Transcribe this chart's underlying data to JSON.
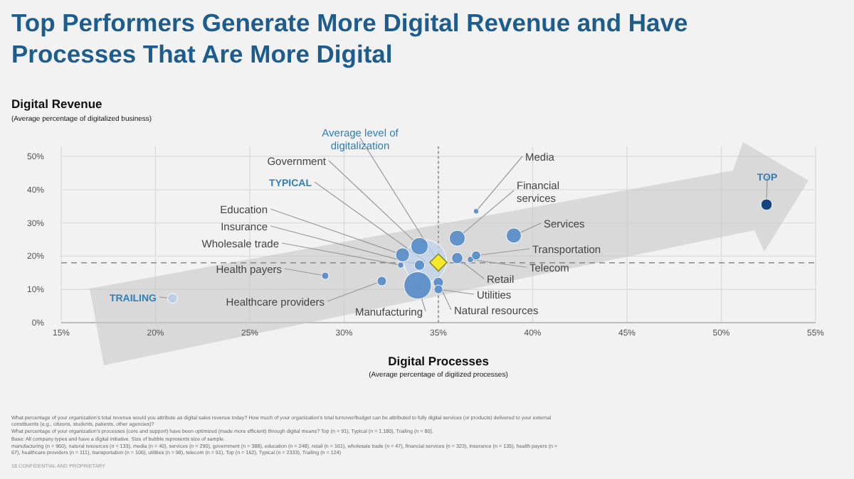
{
  "chart_data": {
    "type": "bubble",
    "title": "Top Performers Generate More Digital Revenue and Have Processes That Are More Digital",
    "xlabel": "Digital Processes\n(Average percentage of digitized processes)",
    "ylabel": "Digital Revenue\n(Average percentage of digitalized business)",
    "xlim": [
      15,
      55
    ],
    "xticks": [
      {
        "value": 15,
        "label": "15%"
      },
      {
        "value": 20,
        "label": "20%"
      },
      {
        "value": 25,
        "label": "25%"
      },
      {
        "value": 30,
        "label": "30%"
      },
      {
        "value": 35,
        "label": "35%"
      },
      {
        "value": 40,
        "label": "40%"
      },
      {
        "value": 45,
        "label": "45%"
      },
      {
        "value": 50,
        "label": "50%"
      },
      {
        "value": 55,
        "label": "55%"
      }
    ],
    "ylim": [
      0,
      53
    ],
    "yticks": [
      {
        "value": 0,
        "label": "0%"
      },
      {
        "value": 10,
        "label": "10%"
      },
      {
        "value": 20,
        "label": "20%"
      },
      {
        "value": 30,
        "label": "30%"
      },
      {
        "value": 40,
        "label": "40%"
      },
      {
        "value": 50,
        "label": "50%"
      }
    ],
    "grid": true,
    "series": [
      {
        "name": "TYPICAL",
        "color": "#bdd4ee",
        "x": [
          34.3
        ],
        "values": [
          18.5
        ],
        "sizes": [
          1
        ]
      },
      {
        "name": "TRAILING",
        "color": "#b8cfe8",
        "x": [
          20.9
        ],
        "values": [
          7.3
        ],
        "sizes": [
          0.053
        ]
      },
      {
        "name": "Health payers",
        "color": "#5b8fc9",
        "x": [
          29
        ],
        "values": [
          14.1
        ],
        "sizes": [
          0.029
        ]
      },
      {
        "name": "Healthcare providers",
        "color": "#5b8fc9",
        "x": [
          32
        ],
        "values": [
          12.5
        ],
        "sizes": [
          0.048
        ]
      },
      {
        "name": "Wholesale trade",
        "color": "#5b8fc9",
        "x": [
          33
        ],
        "values": [
          17.3
        ],
        "sizes": [
          0.02
        ]
      },
      {
        "name": "Education",
        "color": "#5b8fc9",
        "x": [
          33.1
        ],
        "values": [
          20.4
        ],
        "sizes": [
          0.106
        ]
      },
      {
        "name": "Insurance",
        "color": "#5b8fc9",
        "x": [
          34
        ],
        "values": [
          17.3
        ],
        "sizes": [
          0.058
        ]
      },
      {
        "name": "Government",
        "color": "#5b8fc9",
        "x": [
          34
        ],
        "values": [
          23
        ],
        "sizes": [
          0.166
        ]
      },
      {
        "name": "Manufacturing",
        "color": "#5b8fc9",
        "x": [
          33.9
        ],
        "values": [
          11.2
        ],
        "sizes": [
          0.41
        ]
      },
      {
        "name": "Natural resources",
        "color": "#5b8fc9",
        "x": [
          35
        ],
        "values": [
          12.1
        ],
        "sizes": [
          0.057
        ]
      },
      {
        "name": "Utilities",
        "color": "#5b8fc9",
        "x": [
          35
        ],
        "values": [
          10
        ],
        "sizes": [
          0.042
        ]
      },
      {
        "name": "Retail",
        "color": "#5b8fc9",
        "x": [
          36
        ],
        "values": [
          19.4
        ],
        "sizes": [
          0.069
        ]
      },
      {
        "name": "Telecom",
        "color": "#5b8fc9",
        "x": [
          36.7
        ],
        "values": [
          19
        ],
        "sizes": [
          0.022
        ]
      },
      {
        "name": "Transportation",
        "color": "#5b8fc9",
        "x": [
          37
        ],
        "values": [
          20.2
        ],
        "sizes": [
          0.045
        ]
      },
      {
        "name": "Financial services",
        "color": "#5b8fc9",
        "x": [
          36
        ],
        "values": [
          25.4
        ],
        "sizes": [
          0.138
        ]
      },
      {
        "name": "Services",
        "color": "#5b8fc9",
        "x": [
          39
        ],
        "values": [
          26.2
        ],
        "sizes": [
          0.124
        ]
      },
      {
        "name": "Media",
        "color": "#5b8fc9",
        "x": [
          37
        ],
        "values": [
          33.5
        ],
        "sizes": [
          0.017
        ]
      },
      {
        "name": "TOP",
        "color": "#0b3d7a",
        "x": [
          52.4
        ],
        "values": [
          35.5
        ],
        "sizes": [
          0.069
        ]
      },
      {
        "name": "Average level of digitalization",
        "type": "scatter",
        "marker": "diamond",
        "color": "#f5e829",
        "x": [
          35
        ],
        "values": [
          18.1
        ]
      }
    ],
    "ref_lines": [
      {
        "axis": "x",
        "value": 35,
        "line_style": "dotted",
        "color": "#888888"
      },
      {
        "axis": "y",
        "value": 18,
        "line_style": "dashed",
        "color": "#888888"
      }
    ],
    "annotations": [
      "What percentage of your organization's total revenue would you attribute as digital sales revenue today? How much of your organization's total turnover/budget can be attributed to fully digital services (or products) delivered to your external constituents (e.g., citizens, students, patients, other agencies)?",
      "What percentage of your organization's processes (core and support) have been optimized (made more efficient) through digital means? Top (n = 91), Typical (n = 1,180), Trailing (n = 80).",
      "Base: All company types and have a digital initiative. Size of bubble represents size of sample.",
      "manufacturing (n = 960), natural resources (n = 133), media (n = 40), services (n = 290), government (n = 388), education (n = 248), retail (n = 161), wholesale trade (n = 47), financial services (n = 323), insurance (n = 135), health payers (n = 67), healthcare providers (n = 111), transportation (n = 106), utilities (n = 98), telecom (n = 51), Top (n = 162), Typical (n = 2333), Trailing (n = 124)",
      "18  CONFIDENTIAL AND PROPRIETARY"
    ]
  }
}
